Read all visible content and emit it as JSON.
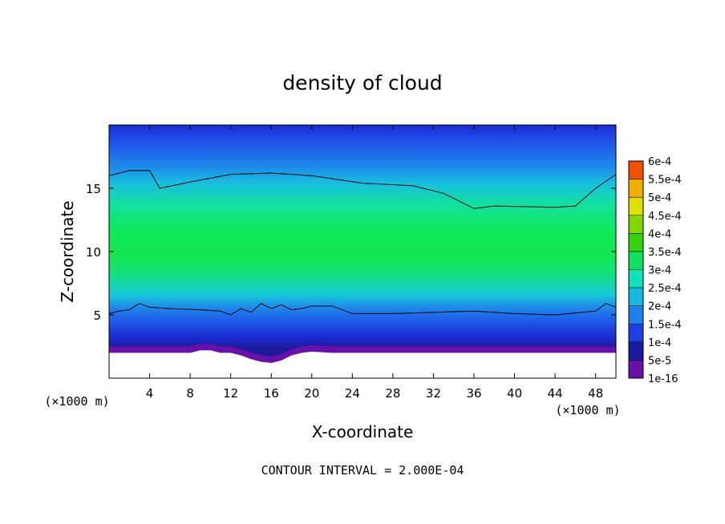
{
  "chart_data": {
    "type": "heatmap",
    "title": "density of cloud",
    "xlabel": "X-coordinate",
    "ylabel": "Z-coordinate",
    "x_unit": "(×1000 m)",
    "z_unit": "(×1000 m)",
    "xlim": [
      0,
      50
    ],
    "ylim": [
      0,
      20
    ],
    "x_ticks": [
      4,
      8,
      12,
      16,
      20,
      24,
      28,
      32,
      36,
      40,
      44,
      48
    ],
    "y_ticks": [
      5,
      10,
      15
    ],
    "footer": "CONTOUR INTERVAL = 2.000E-04",
    "colorbar": {
      "levels": [
        "1e-16",
        "5e-5",
        "1e-4",
        "1.5e-4",
        "2e-4",
        "2.5e-4",
        "3e-4",
        "3.5e-4",
        "4e-4",
        "4.5e-4",
        "5e-4",
        "5.5e-4",
        "6e-4"
      ],
      "colors": [
        "#6a0fa8",
        "#1a1aa0",
        "#1e3fe6",
        "#1f7fe8",
        "#19b8e0",
        "#12e0b8",
        "#10e060",
        "#36d010",
        "#80d800",
        "#e0e000",
        "#f0b000",
        "#f05000",
        "#f07a7a"
      ]
    },
    "contour_upper": {
      "x": [
        0,
        2,
        4,
        5,
        8,
        12,
        16,
        20,
        25,
        30,
        33,
        35,
        36,
        38,
        44,
        46,
        48,
        50
      ],
      "z": [
        16.0,
        16.4,
        16.4,
        15.0,
        15.5,
        16.1,
        16.2,
        16.0,
        15.4,
        15.2,
        14.6,
        13.8,
        13.4,
        13.6,
        13.5,
        13.6,
        15.0,
        16.1
      ]
    },
    "contour_lower": {
      "x": [
        0,
        1,
        2,
        3,
        4,
        6,
        9,
        11,
        12,
        13,
        14,
        15,
        16,
        17,
        18,
        19,
        20,
        22,
        24,
        26,
        28,
        32,
        36,
        40,
        44,
        48,
        49,
        50
      ],
      "z": [
        5.1,
        5.3,
        5.4,
        5.9,
        5.6,
        5.5,
        5.4,
        5.3,
        5.0,
        5.5,
        5.2,
        5.9,
        5.5,
        5.8,
        5.4,
        5.5,
        5.7,
        5.7,
        5.1,
        5.1,
        5.1,
        5.2,
        5.3,
        5.1,
        5.0,
        5.3,
        5.9,
        5.6
      ]
    },
    "lower_boundary": {
      "x": [
        0,
        8,
        9,
        10,
        11,
        12,
        13,
        14,
        15,
        16,
        17,
        18,
        19,
        20,
        22,
        36,
        44,
        50
      ],
      "z": [
        2.0,
        2.0,
        2.2,
        2.2,
        2.0,
        2.0,
        1.8,
        1.5,
        1.3,
        1.2,
        1.4,
        1.8,
        2.0,
        2.1,
        2.0,
        2.0,
        2.0,
        2.0
      ]
    }
  }
}
